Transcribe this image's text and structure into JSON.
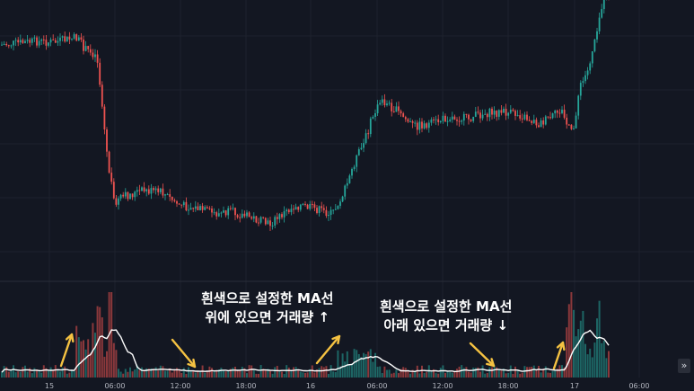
{
  "chart_data": {
    "type": "candlestick",
    "panes": [
      "price",
      "volume"
    ],
    "x_ticks": [
      "15",
      "06:00",
      "12:00",
      "18:00",
      "16",
      "06:00",
      "12:00",
      "18:00",
      "17",
      "06:00"
    ],
    "volume_ma_color": "#ffffff",
    "up_color": "#26a69a",
    "down_color": "#ef5350",
    "background": "#131722",
    "grid": true
  },
  "annotations": {
    "above": {
      "line1": "흰색으로 설정한 MA선",
      "line2": "위에 있으면 거래량 ↑"
    },
    "below": {
      "line1": "흰색으로 설정한 MA선",
      "line2": "아래 있으면 거래량 ↓"
    },
    "arrow_color": "#f5c242"
  },
  "controls": {
    "scroll_right_label": "»"
  }
}
